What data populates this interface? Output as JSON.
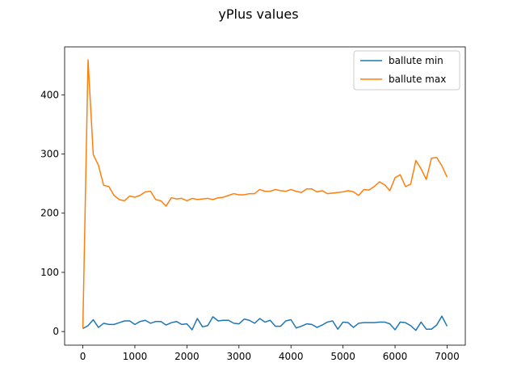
{
  "chart_data": {
    "type": "line",
    "title": "yPlus values",
    "xlabel": "",
    "ylabel": "",
    "xlim": [
      -350,
      7350
    ],
    "ylim": [
      -23,
      481
    ],
    "xticks": [
      0,
      1000,
      2000,
      3000,
      4000,
      5000,
      6000,
      7000
    ],
    "yticks": [
      0,
      100,
      200,
      300,
      400
    ],
    "grid": false,
    "legend_position": "upper right",
    "x": [
      0,
      100,
      200,
      300,
      400,
      500,
      600,
      700,
      800,
      900,
      1000,
      1100,
      1200,
      1300,
      1400,
      1500,
      1600,
      1700,
      1800,
      1900,
      2000,
      2100,
      2200,
      2300,
      2400,
      2500,
      2600,
      2700,
      2800,
      2900,
      3000,
      3100,
      3200,
      3300,
      3400,
      3500,
      3600,
      3700,
      3800,
      3900,
      4000,
      4100,
      4200,
      4300,
      4400,
      4500,
      4600,
      4700,
      4800,
      4900,
      5000,
      5100,
      5200,
      5300,
      5400,
      5500,
      5600,
      5700,
      5800,
      5900,
      6000,
      6100,
      6200,
      6300,
      6400,
      6500,
      6600,
      6700,
      6800,
      6900,
      7000
    ],
    "series": [
      {
        "name": "ballute min",
        "color": "#1f77b4",
        "values": [
          5,
          10,
          20,
          7,
          14,
          12,
          12,
          15,
          18,
          18,
          12,
          17,
          19,
          14,
          17,
          17,
          11,
          15,
          17,
          12,
          13,
          3,
          22,
          8,
          10,
          25,
          18,
          19,
          19,
          14,
          13,
          21,
          19,
          14,
          22,
          16,
          19,
          9,
          9,
          18,
          20,
          6,
          9,
          13,
          12,
          7,
          11,
          16,
          18,
          4,
          16,
          15,
          7,
          14,
          15,
          15,
          15,
          16,
          16,
          13,
          3,
          16,
          15,
          10,
          2,
          16,
          4,
          4,
          11,
          26,
          9
        ]
      },
      {
        "name": "ballute max",
        "color": "#ff7f0e",
        "values": [
          5,
          459,
          299,
          281,
          247,
          245,
          230,
          223,
          221,
          229,
          227,
          230,
          236,
          237,
          223,
          221,
          212,
          226,
          224,
          225,
          221,
          225,
          223,
          224,
          225,
          223,
          226,
          227,
          230,
          233,
          231,
          231,
          233,
          233,
          240,
          237,
          237,
          240,
          238,
          237,
          240,
          237,
          235,
          241,
          241,
          236,
          238,
          233,
          234,
          235,
          236,
          238,
          236,
          230,
          240,
          239,
          245,
          253,
          248,
          238,
          260,
          265,
          245,
          249,
          289,
          275,
          257,
          293,
          294,
          280,
          261
        ]
      }
    ]
  }
}
